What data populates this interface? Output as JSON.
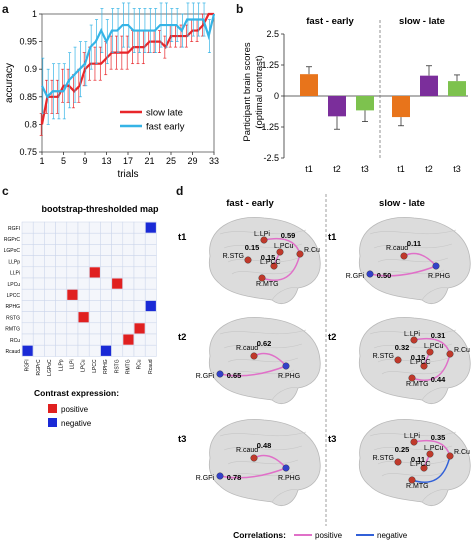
{
  "panels": {
    "a": "a",
    "b": "b",
    "c": "c",
    "d": "d"
  },
  "colors": {
    "red": "#e8262a",
    "cyan": "#35b4e6",
    "orange": "#e8741b",
    "purple": "#7b2e9b",
    "green": "#7dc24e",
    "pos": "#e02020",
    "neg": "#1a2ad6",
    "pos_line": "#e070c8",
    "neg_line": "#3160d8",
    "node_red": "#c0392b",
    "node_blue": "#3340c8"
  },
  "panel_a": {
    "chart_data": {
      "type": "line",
      "xlabel": "trials",
      "ylabel": "accuracy",
      "xlim": [
        1,
        33
      ],
      "ylim": [
        0.75,
        1.0
      ],
      "xticks": [
        "1",
        "5",
        "9",
        "13",
        "17",
        "21",
        "25",
        "29",
        "33"
      ],
      "yticks": [
        "0.75",
        "0.8",
        "0.85",
        "0.9",
        "0.95",
        "1"
      ],
      "x": [
        1,
        2,
        3,
        4,
        5,
        6,
        7,
        8,
        9,
        10,
        11,
        12,
        13,
        14,
        15,
        16,
        17,
        18,
        19,
        20,
        21,
        22,
        23,
        24,
        25,
        26,
        27,
        28,
        29,
        30,
        31,
        32,
        33
      ],
      "series": [
        {
          "name": "slow late",
          "values": [
            0.8,
            0.85,
            0.85,
            0.85,
            0.87,
            0.87,
            0.86,
            0.87,
            0.9,
            0.91,
            0.91,
            0.91,
            0.92,
            0.93,
            0.93,
            0.93,
            0.93,
            0.94,
            0.94,
            0.94,
            0.95,
            0.95,
            0.95,
            0.94,
            0.96,
            0.96,
            0.96,
            0.96,
            0.97,
            0.97,
            0.98,
            1.0,
            1.0
          ],
          "err": [
            0.02,
            0.03,
            0.03,
            0.03,
            0.03,
            0.03,
            0.03,
            0.03,
            0.03,
            0.03,
            0.03,
            0.03,
            0.03,
            0.03,
            0.03,
            0.03,
            0.03,
            0.03,
            0.03,
            0.03,
            0.02,
            0.02,
            0.02,
            0.02,
            0.02,
            0.02,
            0.02,
            0.02,
            0.02,
            0.02,
            0.02,
            0.0,
            0.0
          ]
        },
        {
          "name": "fast early",
          "values": [
            0.87,
            0.85,
            0.86,
            0.86,
            0.86,
            0.88,
            0.89,
            0.9,
            0.91,
            0.94,
            0.95,
            0.97,
            0.95,
            0.97,
            0.97,
            0.98,
            0.98,
            0.97,
            0.97,
            0.97,
            0.97,
            0.97,
            0.98,
            0.98,
            0.98,
            0.98,
            0.97,
            0.99,
            0.99,
            0.99,
            0.99,
            0.96,
            1.0
          ],
          "err": [
            0.05,
            0.05,
            0.05,
            0.05,
            0.05,
            0.05,
            0.05,
            0.05,
            0.04,
            0.04,
            0.04,
            0.04,
            0.04,
            0.04,
            0.04,
            0.04,
            0.04,
            0.04,
            0.04,
            0.04,
            0.04,
            0.04,
            0.04,
            0.04,
            0.03,
            0.03,
            0.03,
            0.03,
            0.03,
            0.03,
            0.03,
            0.03,
            0.0
          ]
        }
      ]
    }
  },
  "panel_b": {
    "chart_data": {
      "type": "bar",
      "ylabel": "Participant brain scores (optimal contrast)",
      "ylim": [
        -2.5,
        2.5
      ],
      "yticks": [
        "2.5",
        "1.25",
        "0",
        "-1.25",
        "-2.5"
      ],
      "groups": [
        {
          "title": "fast - early",
          "categories": [
            "t1",
            "t2",
            "t3"
          ],
          "values": [
            0.88,
            -0.82,
            -0.58
          ],
          "err": [
            0.3,
            0.52,
            0.45
          ]
        },
        {
          "title": "slow - late",
          "categories": [
            "t1",
            "t2",
            "t3"
          ],
          "values": [
            -0.85,
            0.82,
            0.6
          ],
          "err": [
            0.35,
            0.4,
            0.25
          ]
        }
      ]
    }
  },
  "panel_c": {
    "title": "bootstrap-thresholded map",
    "labels": [
      "RGFI",
      "RGPrC",
      "LGPoC",
      "LLPp",
      "LLPi",
      "LPCu",
      "LPCC",
      "RPHG",
      "RSTG",
      "RMTG",
      "RCu",
      "Rcaud"
    ],
    "cells": [
      {
        "row": 0,
        "col": 11,
        "sign": "negative"
      },
      {
        "row": 4,
        "col": 6,
        "sign": "positive"
      },
      {
        "row": 5,
        "col": 8,
        "sign": "positive"
      },
      {
        "row": 6,
        "col": 4,
        "sign": "positive"
      },
      {
        "row": 7,
        "col": 11,
        "sign": "negative"
      },
      {
        "row": 8,
        "col": 5,
        "sign": "positive"
      },
      {
        "row": 9,
        "col": 10,
        "sign": "positive"
      },
      {
        "row": 10,
        "col": 9,
        "sign": "positive"
      },
      {
        "row": 11,
        "col": 0,
        "sign": "negative"
      },
      {
        "row": 11,
        "col": 7,
        "sign": "negative"
      }
    ],
    "legend_title": "Contrast expression:",
    "legend_pos": "positive",
    "legend_neg": "negative"
  },
  "panel_d": {
    "col_left": "fast - early",
    "col_right": "slow - late",
    "rows": [
      "t1",
      "t2",
      "t3"
    ],
    "left": [
      {
        "nodes": [
          "L.LPi",
          "L.PCu",
          "R.Cu",
          "R.STG",
          "L.PCC",
          "R.MTG"
        ],
        "weights": [
          "0.59",
          "0.15",
          "0.15"
        ]
      },
      {
        "nodes": [
          "R.caud",
          "R.PHG",
          "R.GFi"
        ],
        "weights": [
          "0.62",
          "0.65"
        ]
      },
      {
        "nodes": [
          "R.caud",
          "R.PHG",
          "R.GFi"
        ],
        "weights": [
          "0.48",
          "0.78"
        ]
      }
    ],
    "right": [
      {
        "nodes": [
          "R.caud",
          "R.PHG",
          "R.GFi"
        ],
        "weights": [
          "0.11",
          "0.50"
        ]
      },
      {
        "nodes": [
          "L.LPi",
          "L.PCu",
          "R.Cu",
          "R.STG",
          "L.PCC",
          "R.MTG"
        ],
        "weights": [
          "0.31",
          "0.32",
          "0.15",
          "0.44"
        ]
      },
      {
        "nodes": [
          "L.LPi",
          "L.PCu",
          "R.Cu",
          "R.STG",
          "L.PCC",
          "R.MTG"
        ],
        "weights": [
          "0.35",
          "0.25",
          "0.11"
        ]
      }
    ],
    "legend_title": "Correlations:",
    "legend_pos": "positive",
    "legend_neg": "negative"
  }
}
